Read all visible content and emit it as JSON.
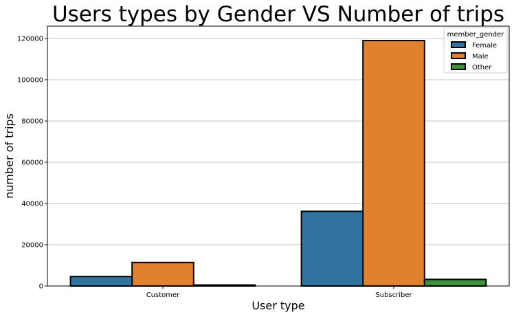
{
  "chart_data": {
    "type": "bar",
    "title": "Users types by Gender VS Number of trips",
    "xlabel": "User type",
    "ylabel": "number of trips",
    "categories": [
      "Customer",
      "Subscriber"
    ],
    "series": [
      {
        "name": "Female",
        "values": [
          4600,
          36200
        ],
        "color": "#3274a1"
      },
      {
        "name": "Male",
        "values": [
          11400,
          119000
        ],
        "color": "#e1812c"
      },
      {
        "name": "Other",
        "values": [
          500,
          3200
        ],
        "color": "#3a923a"
      }
    ],
    "ylim": [
      0,
      126000
    ],
    "yticks": [
      0,
      20000,
      40000,
      60000,
      80000,
      100000,
      120000
    ],
    "ytick_labels": [
      "0",
      "20000",
      "40000",
      "60000",
      "80000",
      "100000",
      "120000"
    ],
    "grid": "horizontal",
    "legend_title": "member_gender",
    "legend_position": "top-right"
  }
}
